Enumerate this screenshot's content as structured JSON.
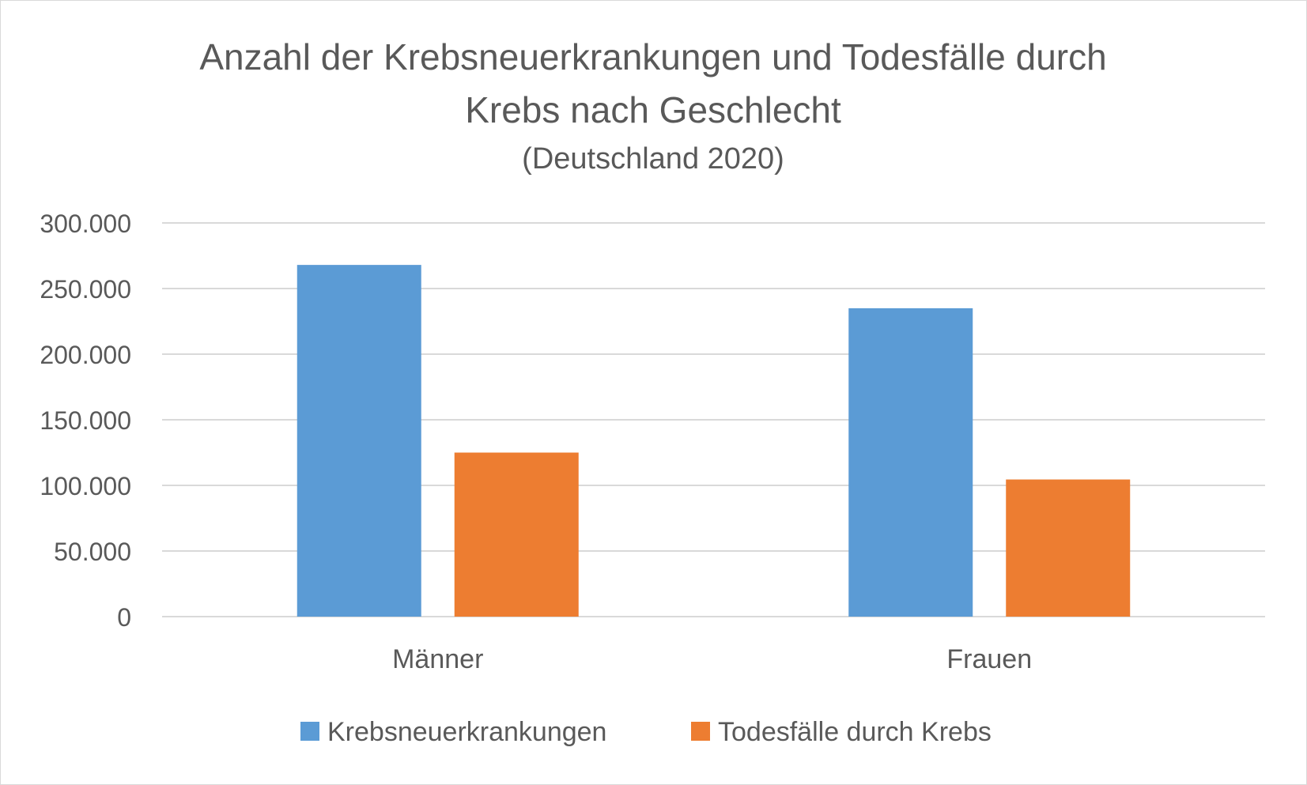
{
  "chart_data": {
    "type": "bar",
    "title_line1": "Anzahl der Krebsneuerkrankungen und Todesfälle durch",
    "title_line2": "Krebs nach Geschlecht",
    "subtitle": "(Deutschland 2020)",
    "categories": [
      "Männer",
      "Frauen"
    ],
    "series": [
      {
        "name": "Krebsneuerkrankungen",
        "color": "#5B9BD5",
        "values": [
          268000,
          235000
        ]
      },
      {
        "name": "Todesfälle durch Krebs",
        "color": "#ED7D31",
        "values": [
          125000,
          104500
        ]
      }
    ],
    "ylim": [
      0,
      300000
    ],
    "yticks": [
      "0",
      "50.000",
      "100.000",
      "150.000",
      "200.000",
      "250.000",
      "300.000"
    ],
    "ytick_values": [
      0,
      50000,
      100000,
      150000,
      200000,
      250000,
      300000
    ],
    "grid": true,
    "legend_position": "bottom"
  }
}
